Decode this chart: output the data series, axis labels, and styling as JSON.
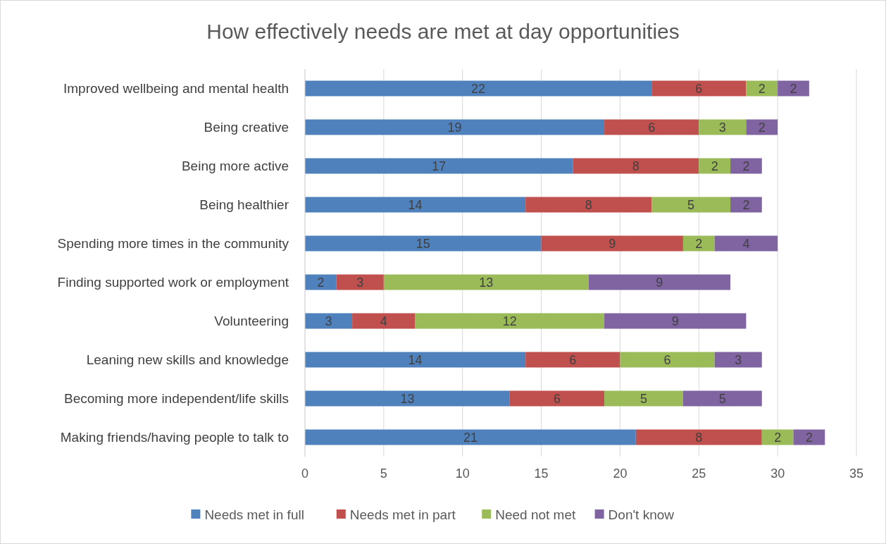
{
  "chart_data": {
    "type": "bar",
    "title": "How effectively needs are met at day opportunities",
    "orientation": "horizontal",
    "stacked": true,
    "categories": [
      "Improved wellbeing and mental health",
      "Being creative",
      "Being more active",
      "Being healthier",
      "Spending more times in the community",
      "Finding supported work or employment",
      "Volunteering",
      "Leaning new skills and knowledge",
      "Becoming more independent/life skills",
      "Making friends/having people to talk to"
    ],
    "series": [
      {
        "name": "Needs met in full",
        "color": "#4f81bd",
        "values": [
          22,
          19,
          17,
          14,
          15,
          2,
          3,
          14,
          13,
          21
        ]
      },
      {
        "name": "Needs met in part",
        "color": "#c0504d",
        "values": [
          6,
          6,
          8,
          8,
          9,
          3,
          4,
          6,
          6,
          8
        ]
      },
      {
        "name": "Need not met",
        "color": "#9bbb59",
        "values": [
          2,
          3,
          2,
          5,
          2,
          13,
          12,
          6,
          5,
          2
        ]
      },
      {
        "name": "Don't know",
        "color": "#8064a2",
        "values": [
          2,
          2,
          2,
          2,
          4,
          9,
          9,
          3,
          5,
          2
        ]
      }
    ],
    "xlim": [
      0,
      35
    ],
    "xticks": [
      0,
      5,
      10,
      15,
      20,
      25,
      30,
      35
    ],
    "grid": "x",
    "legend": "bottom",
    "data_labels": true
  }
}
